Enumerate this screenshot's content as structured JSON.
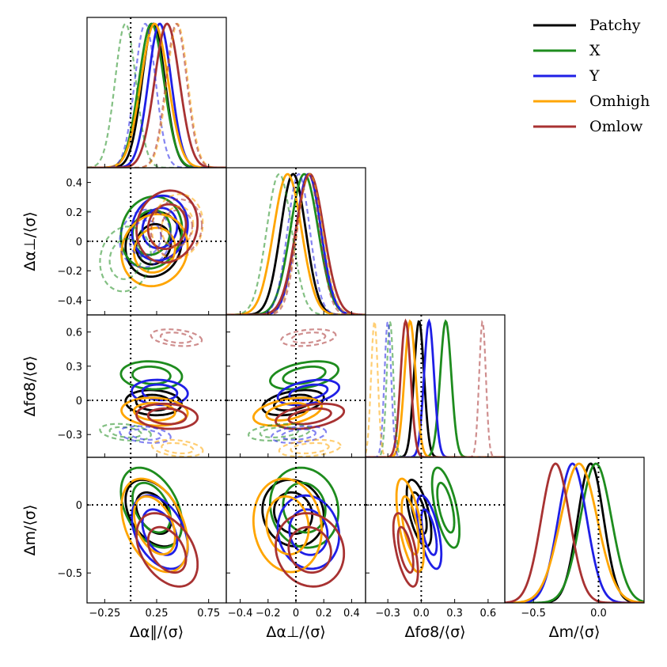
{
  "chart_data": {
    "type": "corner-contour",
    "parameters": [
      {
        "key": "apar",
        "label": "Δα∥/⟨σ⟩",
        "range": [
          -0.42,
          0.92
        ],
        "ticks": [
          -0.25,
          0.25,
          0.75
        ],
        "tick_labels": [
          "−0.25",
          "0.25",
          "0.75"
        ]
      },
      {
        "key": "aperp",
        "label": "Δα⊥/⟨σ⟩",
        "range": [
          -0.5,
          0.5
        ],
        "ticks": [
          -0.4,
          -0.2,
          0,
          0.2,
          0.4
        ],
        "tick_labels": [
          "−0.4",
          "−0.2",
          "0",
          "0.2",
          "0.4"
        ]
      },
      {
        "key": "fs8",
        "label": "Δfσ8/⟨σ⟩",
        "range": [
          -0.5,
          0.75
        ],
        "ticks": [
          -0.3,
          0,
          0.3,
          0.6
        ],
        "tick_labels": [
          "−0.3",
          "0",
          "0.3",
          "0.6"
        ],
        "tick_labels_x": [
          "−0.3",
          "0.0",
          "0.3",
          "0.6"
        ]
      },
      {
        "key": "m",
        "label": "Δm/⟨σ⟩",
        "range": [
          -0.72,
          0.35
        ],
        "ticks": [
          -0.5,
          0
        ],
        "tick_labels": [
          "−0.5",
          "0"
        ],
        "tick_labels_x": [
          "−0.5",
          "0.0"
        ]
      }
    ],
    "reference_values": {
      "apar": 0.0,
      "aperp": 0.0,
      "fs8": 0.0,
      "m": 0.0
    },
    "contour_levels": [
      "68%",
      "95%"
    ],
    "legend": {
      "placement": "top-right",
      "entries": [
        {
          "name": "Patchy",
          "color": "#000000"
        },
        {
          "name": "X",
          "color": "#1e8c1e"
        },
        {
          "name": "Y",
          "color": "#1f1fe6"
        },
        {
          "name": "Omhigh",
          "color": "#ffa500"
        },
        {
          "name": "Omlow",
          "color": "#a83232"
        }
      ]
    },
    "series": [
      {
        "name": "Patchy",
        "color": "#000000",
        "style": "solid",
        "mean": {
          "apar": 0.22,
          "aperp": -0.02,
          "fs8": -0.02,
          "m": -0.06
        },
        "sigma": {
          "apar": 0.11,
          "aperp": 0.09,
          "fs8": 0.045,
          "m": 0.1
        },
        "corr": {
          "apar-aperp": 0.1,
          "apar-fs8": -0.1,
          "apar-m": -0.4,
          "aperp-fs8": 0.4,
          "aperp-m": -0.1,
          "fs8-m": -0.6
        }
      },
      {
        "name": "X",
        "color": "#1e8c1e",
        "style": "solid",
        "mean": {
          "apar": 0.2,
          "aperp": 0.06,
          "fs8": 0.22,
          "m": -0.02
        },
        "sigma": {
          "apar": 0.12,
          "aperp": 0.1,
          "fs8": 0.05,
          "m": 0.12
        },
        "corr": {
          "apar-aperp": 0.1,
          "apar-fs8": -0.1,
          "apar-m": -0.4,
          "aperp-fs8": 0.4,
          "aperp-m": -0.1,
          "fs8-m": -0.6
        }
      },
      {
        "name": "Y",
        "color": "#1f1fe6",
        "style": "solid",
        "mean": {
          "apar": 0.28,
          "aperp": 0.09,
          "fs8": 0.07,
          "m": -0.2
        },
        "sigma": {
          "apar": 0.11,
          "aperp": 0.09,
          "fs8": 0.045,
          "m": 0.11
        },
        "corr": {
          "apar-aperp": 0.1,
          "apar-fs8": -0.1,
          "apar-m": -0.4,
          "aperp-fs8": 0.4,
          "aperp-m": -0.1,
          "fs8-m": -0.6
        }
      },
      {
        "name": "Omhigh",
        "color": "#ffa500",
        "style": "solid",
        "mean": {
          "apar": 0.23,
          "aperp": -0.06,
          "fs8": -0.1,
          "m": -0.15
        },
        "sigma": {
          "apar": 0.13,
          "aperp": 0.1,
          "fs8": 0.05,
          "m": 0.14
        },
        "corr": {
          "apar-aperp": 0.1,
          "apar-fs8": -0.1,
          "apar-m": -0.4,
          "aperp-fs8": 0.4,
          "aperp-m": -0.1,
          "fs8-m": -0.6
        }
      },
      {
        "name": "Omlow",
        "color": "#a83232",
        "style": "solid",
        "mean": {
          "apar": 0.35,
          "aperp": 0.1,
          "fs8": -0.14,
          "m": -0.33
        },
        "sigma": {
          "apar": 0.12,
          "aperp": 0.1,
          "fs8": 0.045,
          "m": 0.11
        },
        "corr": {
          "apar-aperp": 0.1,
          "apar-fs8": -0.1,
          "apar-m": -0.4,
          "aperp-fs8": 0.4,
          "aperp-m": -0.1,
          "fs8-m": -0.6
        }
      },
      {
        "name": "X (dashed)",
        "color": "#1e8c1e",
        "style": "dashed",
        "mean": {
          "apar": -0.05,
          "aperp": -0.12,
          "fs8": -0.28
        },
        "sigma": {
          "apar": 0.1,
          "aperp": 0.09,
          "fs8": 0.03
        },
        "corr": {
          "apar-aperp": 0.1,
          "apar-fs8": -0.3,
          "aperp-fs8": 0.3
        }
      },
      {
        "name": "Y (dashed)",
        "color": "#1f1fe6",
        "style": "dashed",
        "mean": {
          "apar": 0.14,
          "aperp": 0.02,
          "fs8": -0.3
        },
        "sigma": {
          "apar": 0.1,
          "aperp": 0.08,
          "fs8": 0.03
        },
        "corr": {
          "apar-aperp": 0.1,
          "apar-fs8": -0.3,
          "aperp-fs8": 0.3
        }
      },
      {
        "name": "Omhigh (dashed)",
        "color": "#ffa500",
        "style": "dashed",
        "mean": {
          "apar": 0.45,
          "aperp": 0.1,
          "fs8": -0.42
        },
        "sigma": {
          "apar": 0.1,
          "aperp": 0.09,
          "fs8": 0.03
        },
        "corr": {
          "apar-aperp": 0.1,
          "apar-fs8": -0.3,
          "aperp-fs8": 0.3
        }
      },
      {
        "name": "Omlow (dashed)",
        "color": "#a83232",
        "style": "dashed",
        "mean": {
          "apar": 0.44,
          "aperp": 0.09,
          "fs8": 0.55
        },
        "sigma": {
          "apar": 0.1,
          "aperp": 0.08,
          "fs8": 0.03
        },
        "corr": {
          "apar-aperp": 0.1,
          "apar-fs8": -0.3,
          "aperp-fs8": 0.3
        }
      }
    ]
  }
}
